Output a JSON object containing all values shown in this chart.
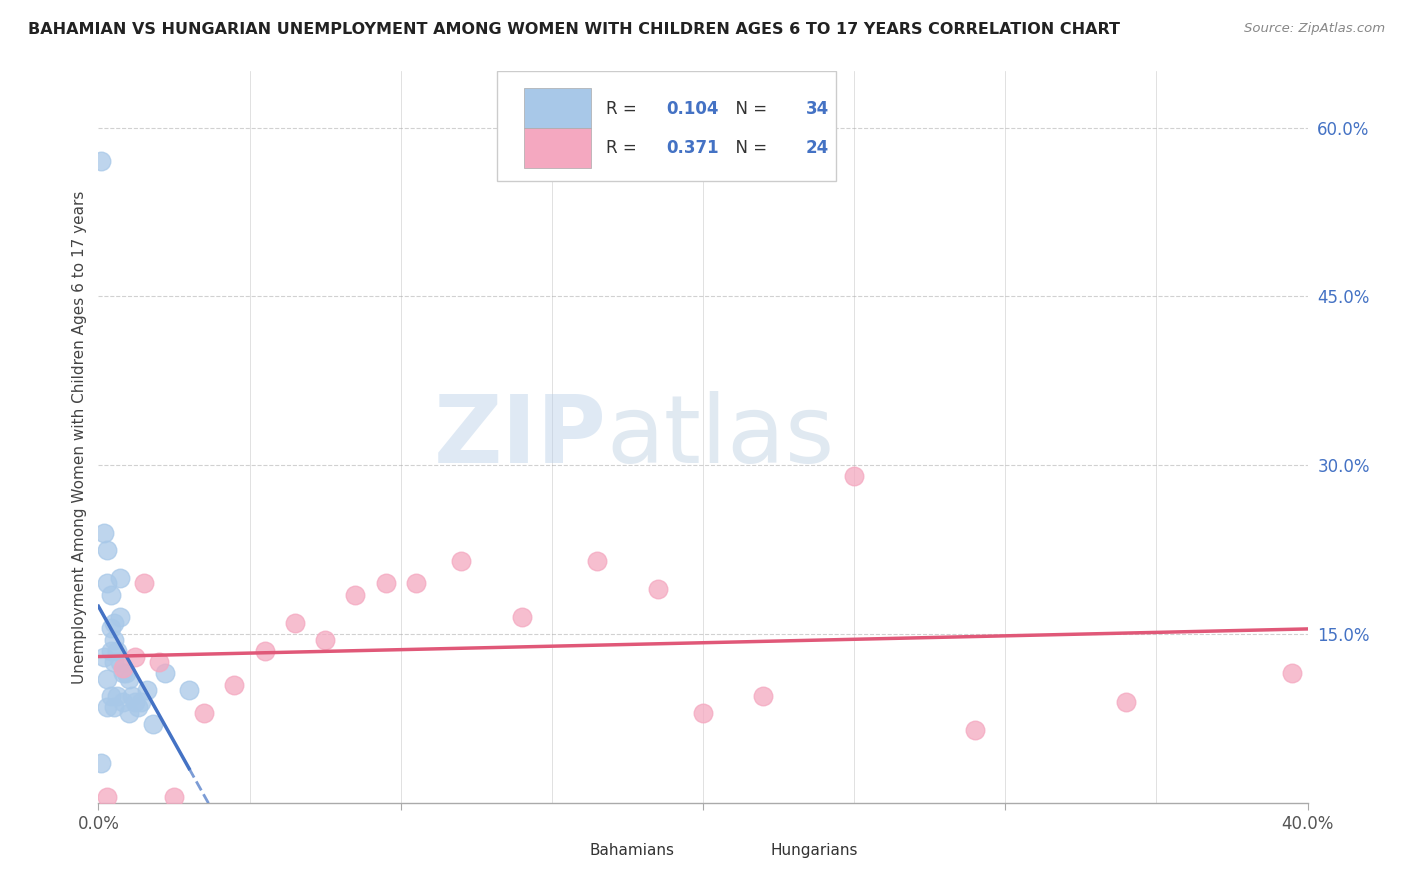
{
  "title": "BAHAMIAN VS HUNGARIAN UNEMPLOYMENT AMONG WOMEN WITH CHILDREN AGES 6 TO 17 YEARS CORRELATION CHART",
  "source": "Source: ZipAtlas.com",
  "ylabel": "Unemployment Among Women with Children Ages 6 to 17 years",
  "yticks_labels": [
    "60.0%",
    "45.0%",
    "30.0%",
    "15.0%"
  ],
  "ytick_vals": [
    0.6,
    0.45,
    0.3,
    0.15
  ],
  "watermark_zip": "ZIP",
  "watermark_atlas": "atlas",
  "legend_bahamian_r": "0.104",
  "legend_bahamian_n": "34",
  "legend_hungarian_r": "0.371",
  "legend_hungarian_n": "24",
  "bahamian_color": "#a8c8e8",
  "bahamian_line_color": "#4472c4",
  "hungarian_color": "#f4a8c0",
  "hungarian_line_color": "#e05878",
  "xlim": [
    0.0,
    0.4
  ],
  "ylim": [
    0.0,
    0.65
  ],
  "background_color": "#ffffff",
  "grid_color": "#cccccc",
  "bah_x": [
    0.001,
    0.001,
    0.002,
    0.002,
    0.003,
    0.003,
    0.003,
    0.003,
    0.004,
    0.004,
    0.004,
    0.004,
    0.005,
    0.005,
    0.005,
    0.005,
    0.006,
    0.006,
    0.007,
    0.007,
    0.007,
    0.008,
    0.008,
    0.009,
    0.01,
    0.01,
    0.011,
    0.012,
    0.013,
    0.014,
    0.016,
    0.018,
    0.022,
    0.03
  ],
  "bah_y": [
    0.57,
    0.035,
    0.24,
    0.13,
    0.225,
    0.195,
    0.11,
    0.085,
    0.185,
    0.155,
    0.135,
    0.095,
    0.16,
    0.145,
    0.125,
    0.085,
    0.135,
    0.095,
    0.2,
    0.165,
    0.125,
    0.115,
    0.09,
    0.115,
    0.11,
    0.08,
    0.095,
    0.09,
    0.085,
    0.09,
    0.1,
    0.07,
    0.115,
    0.1
  ],
  "hun_x": [
    0.003,
    0.008,
    0.012,
    0.015,
    0.02,
    0.025,
    0.035,
    0.045,
    0.055,
    0.065,
    0.075,
    0.085,
    0.095,
    0.105,
    0.12,
    0.14,
    0.165,
    0.185,
    0.2,
    0.22,
    0.25,
    0.29,
    0.34,
    0.395
  ],
  "hun_y": [
    0.005,
    0.12,
    0.13,
    0.195,
    0.125,
    0.005,
    0.08,
    0.105,
    0.135,
    0.16,
    0.145,
    0.185,
    0.195,
    0.195,
    0.215,
    0.165,
    0.215,
    0.19,
    0.08,
    0.095,
    0.29,
    0.065,
    0.09,
    0.115
  ]
}
